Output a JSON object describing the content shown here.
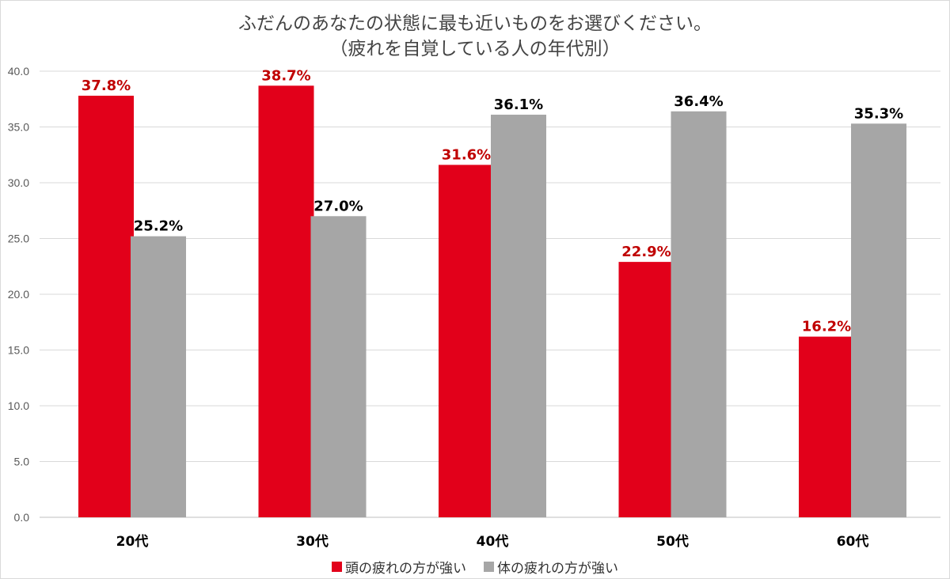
{
  "chart_data": {
    "type": "bar",
    "title": "ふだんのあなたの状態に最も近いものをお選びください。",
    "subtitle": "（疲れを自覚している人の年代別）",
    "categories": [
      "20代",
      "30代",
      "40代",
      "50代",
      "60代"
    ],
    "series": [
      {
        "name": "頭の疲れの方が強い",
        "color": "#e2001a",
        "label_color": "#c00000",
        "values": [
          37.8,
          38.7,
          31.6,
          22.9,
          16.2
        ],
        "labels": [
          "37.8%",
          "38.7%",
          "31.6%",
          "22.9%",
          "16.2%"
        ]
      },
      {
        "name": "体の疲れの方が強い",
        "color": "#a6a6a6",
        "label_color": "#000000",
        "values": [
          25.2,
          27.0,
          36.1,
          36.4,
          35.3
        ],
        "labels": [
          "25.2%",
          "27.0%",
          "36.1%",
          "36.4%",
          "35.3%"
        ]
      }
    ],
    "y_ticks": [
      "0.0",
      "5.0",
      "10.0",
      "15.0",
      "20.0",
      "25.0",
      "30.0",
      "35.0",
      "40.0"
    ],
    "ylim": [
      0,
      40
    ],
    "grid": true,
    "legend_position": "bottom"
  }
}
